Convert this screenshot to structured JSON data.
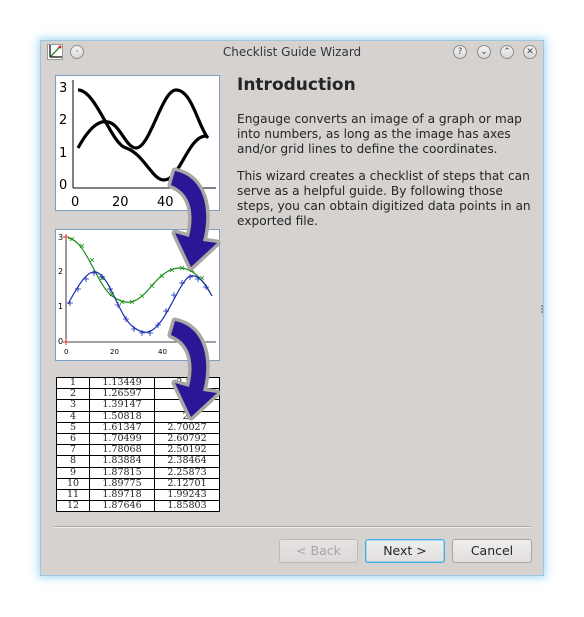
{
  "window": {
    "title": "Checklist Guide Wizard",
    "icons": [
      "app-logo-icon",
      "pin-icon",
      "help-icon",
      "minimize-icon",
      "maximize-icon",
      "close-icon"
    ],
    "accent": "#3daee9"
  },
  "content": {
    "heading": "Introduction",
    "paragraph1": "Engauge converts an image of a graph or map into numbers, as long as the image has axes and/or grid lines to define the coordinates.",
    "paragraph2": "This wizard creates a checklist of steps that can serve as a helpful guide. By following those steps, you can obtain digitized data points in an exported file."
  },
  "graph_thumb": {
    "y_ticks": [
      "3",
      "2",
      "1",
      "0"
    ],
    "x_ticks": [
      "0",
      "20",
      "40"
    ]
  },
  "digitized_thumb": {
    "y_ticks": [
      "3",
      "2",
      "1",
      "0"
    ],
    "x_ticks": [
      "0",
      "20",
      "40"
    ]
  },
  "table": {
    "rows": [
      [
        "1",
        "1.13449",
        "2.89"
      ],
      [
        "2",
        "1.26597",
        "2.8"
      ],
      [
        "3",
        "1.39147",
        "2."
      ],
      [
        "4",
        "1.50818",
        "2."
      ],
      [
        "5",
        "1.61347",
        "2.70027"
      ],
      [
        "6",
        "1.70499",
        "2.60792"
      ],
      [
        "7",
        "1.78068",
        "2.50192"
      ],
      [
        "8",
        "1.83884",
        "2.38464"
      ],
      [
        "9",
        "1.87815",
        "2.25873"
      ],
      [
        "10",
        "1.89775",
        "2.12701"
      ],
      [
        "11",
        "1.89718",
        "1.99243"
      ],
      [
        "12",
        "1.87646",
        "1.85803"
      ]
    ]
  },
  "buttons": {
    "back": "< Back",
    "next": "Next >",
    "cancel": "Cancel"
  }
}
